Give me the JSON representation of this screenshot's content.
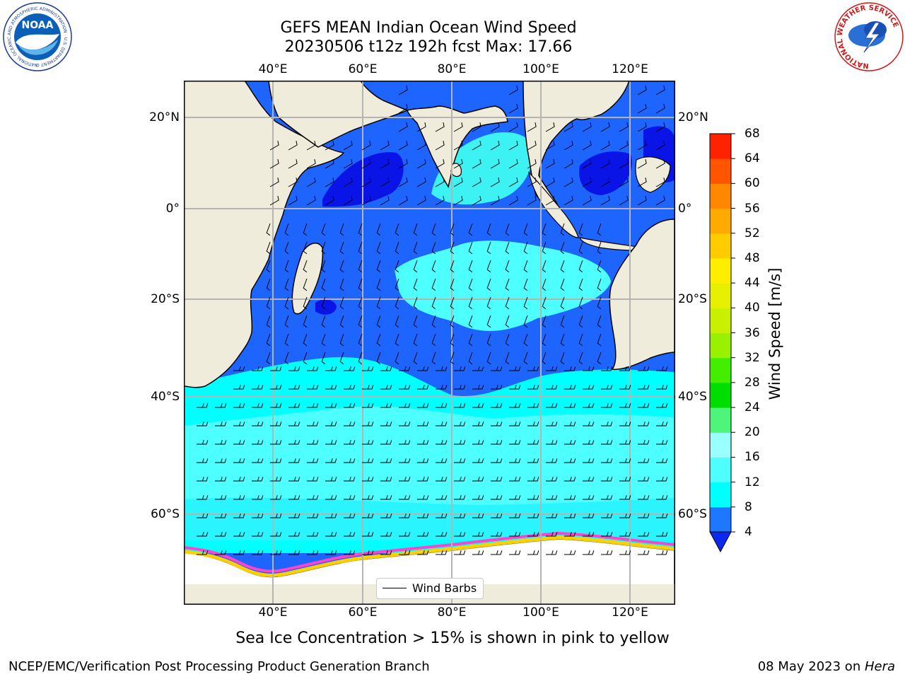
{
  "title": {
    "line1": "GEFS MEAN Indian Ocean Wind Speed",
    "line2": "20230506 t12z 192h fcst   Max: 17.66"
  },
  "map": {
    "lon_labels": [
      "40°E",
      "60°E",
      "80°E",
      "100°E",
      "120°E"
    ],
    "lat_labels": [
      "20°N",
      "0°",
      "20°S",
      "40°S",
      "60°S"
    ],
    "legend_label": "Wind Barbs",
    "colors": {
      "land": "#efecdc",
      "wind_4_8": "#1e64ff",
      "wind_deep": "#0a14e6",
      "wind_8_12": "#00ffff",
      "wind_12_16": "#4dffff",
      "wind_16_20": "#99ffff",
      "ice_pink": "#ff44cc",
      "ice_yellow": "#ffd000",
      "ice_orange": "#ffa000",
      "grid": "#b4b4b4"
    }
  },
  "colorbar": {
    "label": "Wind Speed [m/s]",
    "ticks": [
      "4",
      "8",
      "12",
      "16",
      "20",
      "24",
      "28",
      "32",
      "36",
      "40",
      "44",
      "48",
      "52",
      "56",
      "60",
      "64",
      "68"
    ],
    "colors": [
      "#0a28f0",
      "#1e78ff",
      "#00ffff",
      "#4dffff",
      "#99ffff",
      "#4ef57a",
      "#00dd00",
      "#44ee00",
      "#99f000",
      "#c8f000",
      "#e6f000",
      "#ffee00",
      "#ffcc00",
      "#ffaa00",
      "#ff8800",
      "#ff5500",
      "#ff2200",
      "#ff0000"
    ]
  },
  "note": "Sea Ice Concentration > 15% is shown in pink to yellow",
  "footer": {
    "left": "NCEP/EMC/Verification Post Processing Product Generation Branch",
    "right_prefix": "08 May 2023 on ",
    "right_italic": "Hera"
  },
  "logos": {
    "noaa_text": "NOAA",
    "noaa_ring": "NATIONAL OCEANIC AND ATMOSPHERIC ADMINISTRATION · U.S. DEPARTMENT OF COMMERCE",
    "nws_ring": "NATIONAL WEATHER SERVICE"
  }
}
